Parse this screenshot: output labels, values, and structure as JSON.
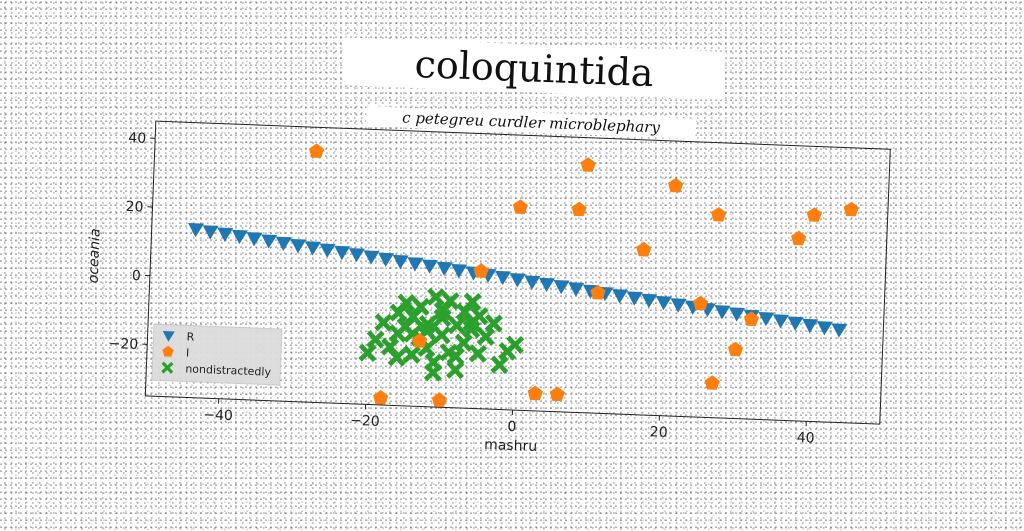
{
  "chart_data": {
    "type": "scatter",
    "title": "coloquintida",
    "subtitle": "c petegreu curdler microblephary",
    "xlabel": "mashru",
    "ylabel": "oceania",
    "xlim": [
      -50,
      50
    ],
    "ylim": [
      -35,
      45
    ],
    "xticks": [
      -40,
      -20,
      0,
      20,
      40
    ],
    "yticks": [
      -20,
      0,
      20,
      40
    ],
    "xtick_labels": [
      "−40",
      "−20",
      "0",
      "20",
      "40"
    ],
    "ytick_labels": [
      "−20",
      "0",
      "20",
      "40"
    ],
    "grid": false,
    "legend_position": "lower-left",
    "series": [
      {
        "name": "R",
        "marker": "triangle-down",
        "color": "#1f77b4",
        "x": [
          -44,
          -42,
          -40,
          -38,
          -36,
          -34,
          -32,
          -30,
          -28,
          -26,
          -24,
          -22,
          -20,
          -18,
          -16,
          -14,
          -12,
          -10,
          -8,
          -6,
          -4,
          -2,
          0,
          2,
          4,
          6,
          8,
          10,
          12,
          14,
          16,
          18,
          20,
          22,
          24,
          26,
          28,
          30,
          32,
          34,
          36,
          38,
          40,
          42,
          44
        ],
        "y": [
          14.0,
          13.5,
          13.0,
          12.5,
          12.0,
          11.5,
          11.0,
          10.5,
          10.0,
          9.5,
          9.0,
          8.5,
          8.0,
          7.5,
          7.0,
          6.5,
          6.0,
          5.5,
          5.0,
          4.5,
          4.0,
          3.5,
          3.0,
          2.5,
          2.0,
          1.5,
          1.0,
          0.5,
          0.0,
          -0.5,
          -1.0,
          -1.5,
          -2.0,
          -2.5,
          -3.0,
          -3.5,
          -4.0,
          -4.5,
          -5.0,
          -5.5,
          -6.0,
          -6.5,
          -7.0,
          -7.5,
          -8.0
        ]
      },
      {
        "name": "I",
        "marker": "pentagon",
        "color": "#ff7f0e",
        "x": [
          -28,
          -18,
          -10,
          -5,
          0,
          3,
          6,
          8,
          9,
          11,
          17,
          21,
          25,
          27,
          27,
          30,
          32,
          38,
          40,
          45,
          -13
        ],
        "y": [
          38,
          -33,
          -33,
          5,
          24,
          -30,
          -30,
          24,
          37,
          0,
          13,
          32,
          -2,
          -25,
          24,
          -15,
          -6,
          18,
          25,
          27,
          -16
        ]
      },
      {
        "name": "nondistractedly",
        "marker": "x-filled",
        "color": "#2ca02c",
        "x": [
          -20,
          -19,
          -18,
          -17,
          -16,
          -16,
          -15,
          -15,
          -14,
          -14,
          -13,
          -13,
          -12,
          -12,
          -11,
          -11,
          -10,
          -10,
          -9,
          -9,
          -8,
          -8,
          -7,
          -7,
          -6,
          -6,
          -5,
          -5,
          -4,
          -3,
          -2,
          -1,
          0,
          -14,
          -12,
          -10,
          -8,
          -6,
          -16,
          -11
        ],
        "y": [
          -20,
          -16,
          -11,
          -18,
          -8,
          -14,
          -5,
          -12,
          -20,
          -9,
          -6,
          -15,
          -11,
          -18,
          -3,
          -22,
          -9,
          -14,
          -4,
          -19,
          -11,
          -24,
          -7,
          -16,
          -4,
          -12,
          -19,
          -8,
          -14,
          -10,
          -22,
          -18,
          -16,
          -14,
          -13,
          -7,
          -20,
          -10,
          -21,
          -25
        ]
      }
    ]
  }
}
